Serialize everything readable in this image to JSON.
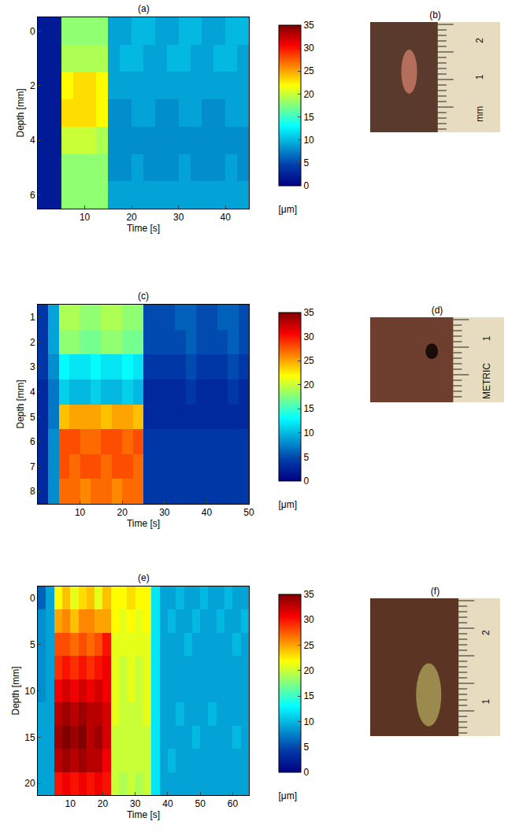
{
  "chart_data": [
    {
      "type": "heatmap",
      "title": "(a)",
      "xlabel": "Time [s]",
      "ylabel": "Depth [mm]",
      "x": [
        1.25,
        3.75,
        6.25,
        8.75,
        11.25,
        13.75,
        16.25,
        18.75,
        21.25,
        23.75,
        26.25,
        28.75,
        31.25,
        33.75,
        36.25,
        38.75,
        41.25,
        43.75
      ],
      "y": [
        0,
        1,
        2,
        3,
        4,
        5,
        6
      ],
      "z": [
        [
          2,
          2,
          18,
          18,
          18,
          18,
          9,
          9,
          10,
          10,
          9,
          9,
          10,
          10,
          9,
          9,
          10,
          10
        ],
        [
          2,
          2,
          19,
          19,
          19,
          19,
          9,
          10,
          10,
          9,
          9,
          10,
          10,
          9,
          9,
          10,
          10,
          9
        ],
        [
          2,
          2,
          22,
          23,
          23,
          22,
          9,
          9,
          9,
          9,
          9,
          9,
          9,
          9,
          9,
          9,
          9,
          9
        ],
        [
          2,
          2,
          23,
          23,
          23,
          22,
          8,
          8,
          9,
          9,
          8,
          8,
          9,
          9,
          8,
          8,
          9,
          9
        ],
        [
          2,
          2,
          20,
          20,
          20,
          19,
          8,
          8,
          8,
          8,
          8,
          8,
          8,
          8,
          8,
          8,
          8,
          8
        ],
        [
          2,
          2,
          18,
          18,
          18,
          18,
          8,
          8,
          9,
          8,
          8,
          8,
          9,
          8,
          8,
          8,
          9,
          8
        ],
        [
          2,
          2,
          18,
          18,
          18,
          18,
          9,
          9,
          9,
          9,
          9,
          9,
          9,
          9,
          9,
          9,
          9,
          9
        ]
      ],
      "xlim": [
        0,
        45
      ],
      "xticks": [
        10,
        20,
        30,
        40
      ],
      "ylim": [
        6.5,
        -0.5
      ],
      "yticks": [
        0,
        2,
        4,
        6
      ],
      "colorbar": {
        "range": [
          0,
          35
        ],
        "ticks": [
          0,
          5,
          10,
          15,
          20,
          25,
          30,
          35
        ],
        "title": "[μm]"
      }
    },
    {
      "type": "heatmap",
      "title": "(c)",
      "xlabel": "Time [s]",
      "ylabel": "Depth [mm]",
      "x": [
        1.25,
        3.75,
        6.25,
        8.75,
        11.25,
        13.75,
        16.25,
        18.75,
        21.25,
        23.75,
        26.25,
        28.75,
        31.25,
        33.75,
        36.25,
        38.75,
        41.25,
        43.75,
        46.25,
        48.75
      ],
      "y": [
        1,
        2,
        3,
        4,
        5,
        6,
        7,
        8
      ],
      "z": [
        [
          4,
          9,
          19,
          19,
          18,
          18,
          19,
          19,
          18,
          18,
          5,
          5,
          5,
          6,
          6,
          5,
          5,
          6,
          6,
          5
        ],
        [
          4,
          9,
          18,
          18,
          17,
          17,
          18,
          18,
          17,
          17,
          5,
          5,
          5,
          5,
          6,
          5,
          5,
          5,
          6,
          5
        ],
        [
          4,
          8,
          13,
          12,
          12,
          13,
          12,
          12,
          13,
          12,
          4,
          4,
          4,
          4,
          5,
          4,
          4,
          4,
          5,
          4
        ],
        [
          3,
          7,
          11,
          10,
          10,
          11,
          10,
          10,
          11,
          10,
          3,
          3,
          3,
          3,
          4,
          3,
          3,
          3,
          4,
          3
        ],
        [
          3,
          7,
          24,
          25,
          25,
          25,
          24,
          25,
          25,
          24,
          3,
          3,
          3,
          3,
          3,
          3,
          3,
          3,
          3,
          3
        ],
        [
          3,
          8,
          28,
          28,
          27,
          27,
          28,
          28,
          27,
          28,
          4,
          4,
          4,
          4,
          4,
          4,
          4,
          4,
          4,
          4
        ],
        [
          3,
          8,
          28,
          27,
          28,
          28,
          27,
          28,
          28,
          27,
          4,
          4,
          4,
          4,
          4,
          4,
          4,
          4,
          4,
          4
        ],
        [
          3,
          8,
          27,
          27,
          26,
          27,
          27,
          26,
          27,
          27,
          4,
          4,
          4,
          4,
          4,
          4,
          4,
          4,
          4,
          4
        ]
      ],
      "xlim": [
        0,
        50
      ],
      "xticks": [
        10,
        20,
        30,
        40,
        50
      ],
      "ylim": [
        8.5,
        0.5
      ],
      "yticks": [
        1,
        2,
        3,
        4,
        5,
        6,
        7,
        8
      ],
      "colorbar": {
        "range": [
          0,
          35
        ],
        "ticks": [
          0,
          5,
          10,
          15,
          20,
          25,
          30,
          35
        ],
        "title": "[μm]"
      }
    },
    {
      "type": "heatmap",
      "title": "(e)",
      "xlabel": "Time [s]",
      "ylabel": "Depth [mm]",
      "x": [
        1.25,
        3.75,
        6.25,
        8.75,
        11.25,
        13.75,
        16.25,
        18.75,
        21.25,
        23.75,
        26.25,
        28.75,
        31.25,
        33.75,
        36.25,
        38.75,
        41.25,
        43.75,
        46.25,
        48.75,
        51.25,
        53.75,
        56.25,
        58.75,
        61.25,
        63.75
      ],
      "y": [
        0,
        2.5,
        5,
        7.5,
        10,
        12.5,
        15,
        17.5,
        20
      ],
      "z": [
        [
          6,
          9,
          22,
          24,
          21,
          23,
          24,
          21,
          24,
          22,
          22,
          23,
          22,
          22,
          12,
          9,
          9,
          10,
          9,
          9,
          10,
          9,
          9,
          10,
          9,
          9
        ],
        [
          8,
          9,
          25,
          26,
          24,
          26,
          26,
          25,
          25,
          22,
          21,
          22,
          21,
          22,
          12,
          9,
          10,
          9,
          9,
          10,
          9,
          9,
          10,
          9,
          9,
          10
        ],
        [
          8,
          9,
          28,
          28,
          27,
          28,
          27,
          28,
          30,
          21,
          21,
          21,
          21,
          21,
          12,
          9,
          9,
          9,
          10,
          9,
          9,
          9,
          9,
          9,
          10,
          9
        ],
        [
          8,
          9,
          29,
          30,
          29,
          30,
          29,
          30,
          31,
          21,
          20,
          21,
          20,
          21,
          12,
          9,
          9,
          9,
          9,
          9,
          9,
          9,
          9,
          9,
          9,
          9
        ],
        [
          8,
          9,
          31,
          32,
          31,
          32,
          31,
          32,
          31,
          21,
          20,
          21,
          20,
          21,
          12,
          9,
          9,
          9,
          9,
          9,
          9,
          9,
          9,
          9,
          9,
          9
        ],
        [
          9,
          9,
          33,
          34,
          33,
          34,
          33,
          33,
          32,
          21,
          20,
          20,
          20,
          21,
          12,
          9,
          9,
          10,
          9,
          9,
          9,
          10,
          9,
          9,
          9,
          9
        ],
        [
          9,
          9,
          34,
          35,
          34,
          35,
          33,
          34,
          32,
          20,
          20,
          20,
          20,
          20,
          12,
          9,
          9,
          9,
          9,
          10,
          9,
          9,
          9,
          9,
          10,
          9
        ],
        [
          9,
          9,
          33,
          34,
          33,
          34,
          33,
          33,
          31,
          20,
          20,
          20,
          20,
          20,
          12,
          9,
          10,
          9,
          9,
          9,
          9,
          9,
          9,
          9,
          9,
          9
        ],
        [
          9,
          9,
          30,
          31,
          30,
          31,
          30,
          31,
          30,
          20,
          19,
          20,
          19,
          20,
          12,
          9,
          9,
          9,
          9,
          9,
          9,
          9,
          9,
          9,
          9,
          9
        ]
      ],
      "xlim": [
        0,
        65
      ],
      "xticks": [
        10,
        20,
        30,
        40,
        50,
        60
      ],
      "ylim": [
        21.25,
        -1.25
      ],
      "yticks": [
        0,
        5,
        10,
        15,
        20
      ],
      "colorbar": {
        "range": [
          0,
          35
        ],
        "ticks": [
          0,
          5,
          10,
          15,
          20,
          25,
          30,
          35
        ],
        "title": "[μm]"
      }
    }
  ],
  "photos": [
    {
      "label": "(b)",
      "ruler_labels": [
        "2",
        "1",
        "mm"
      ]
    },
    {
      "label": "(d)",
      "ruler_labels": [
        "1",
        "METRIC"
      ]
    },
    {
      "label": "(f)",
      "ruler_labels": [
        "2",
        "1"
      ]
    }
  ]
}
